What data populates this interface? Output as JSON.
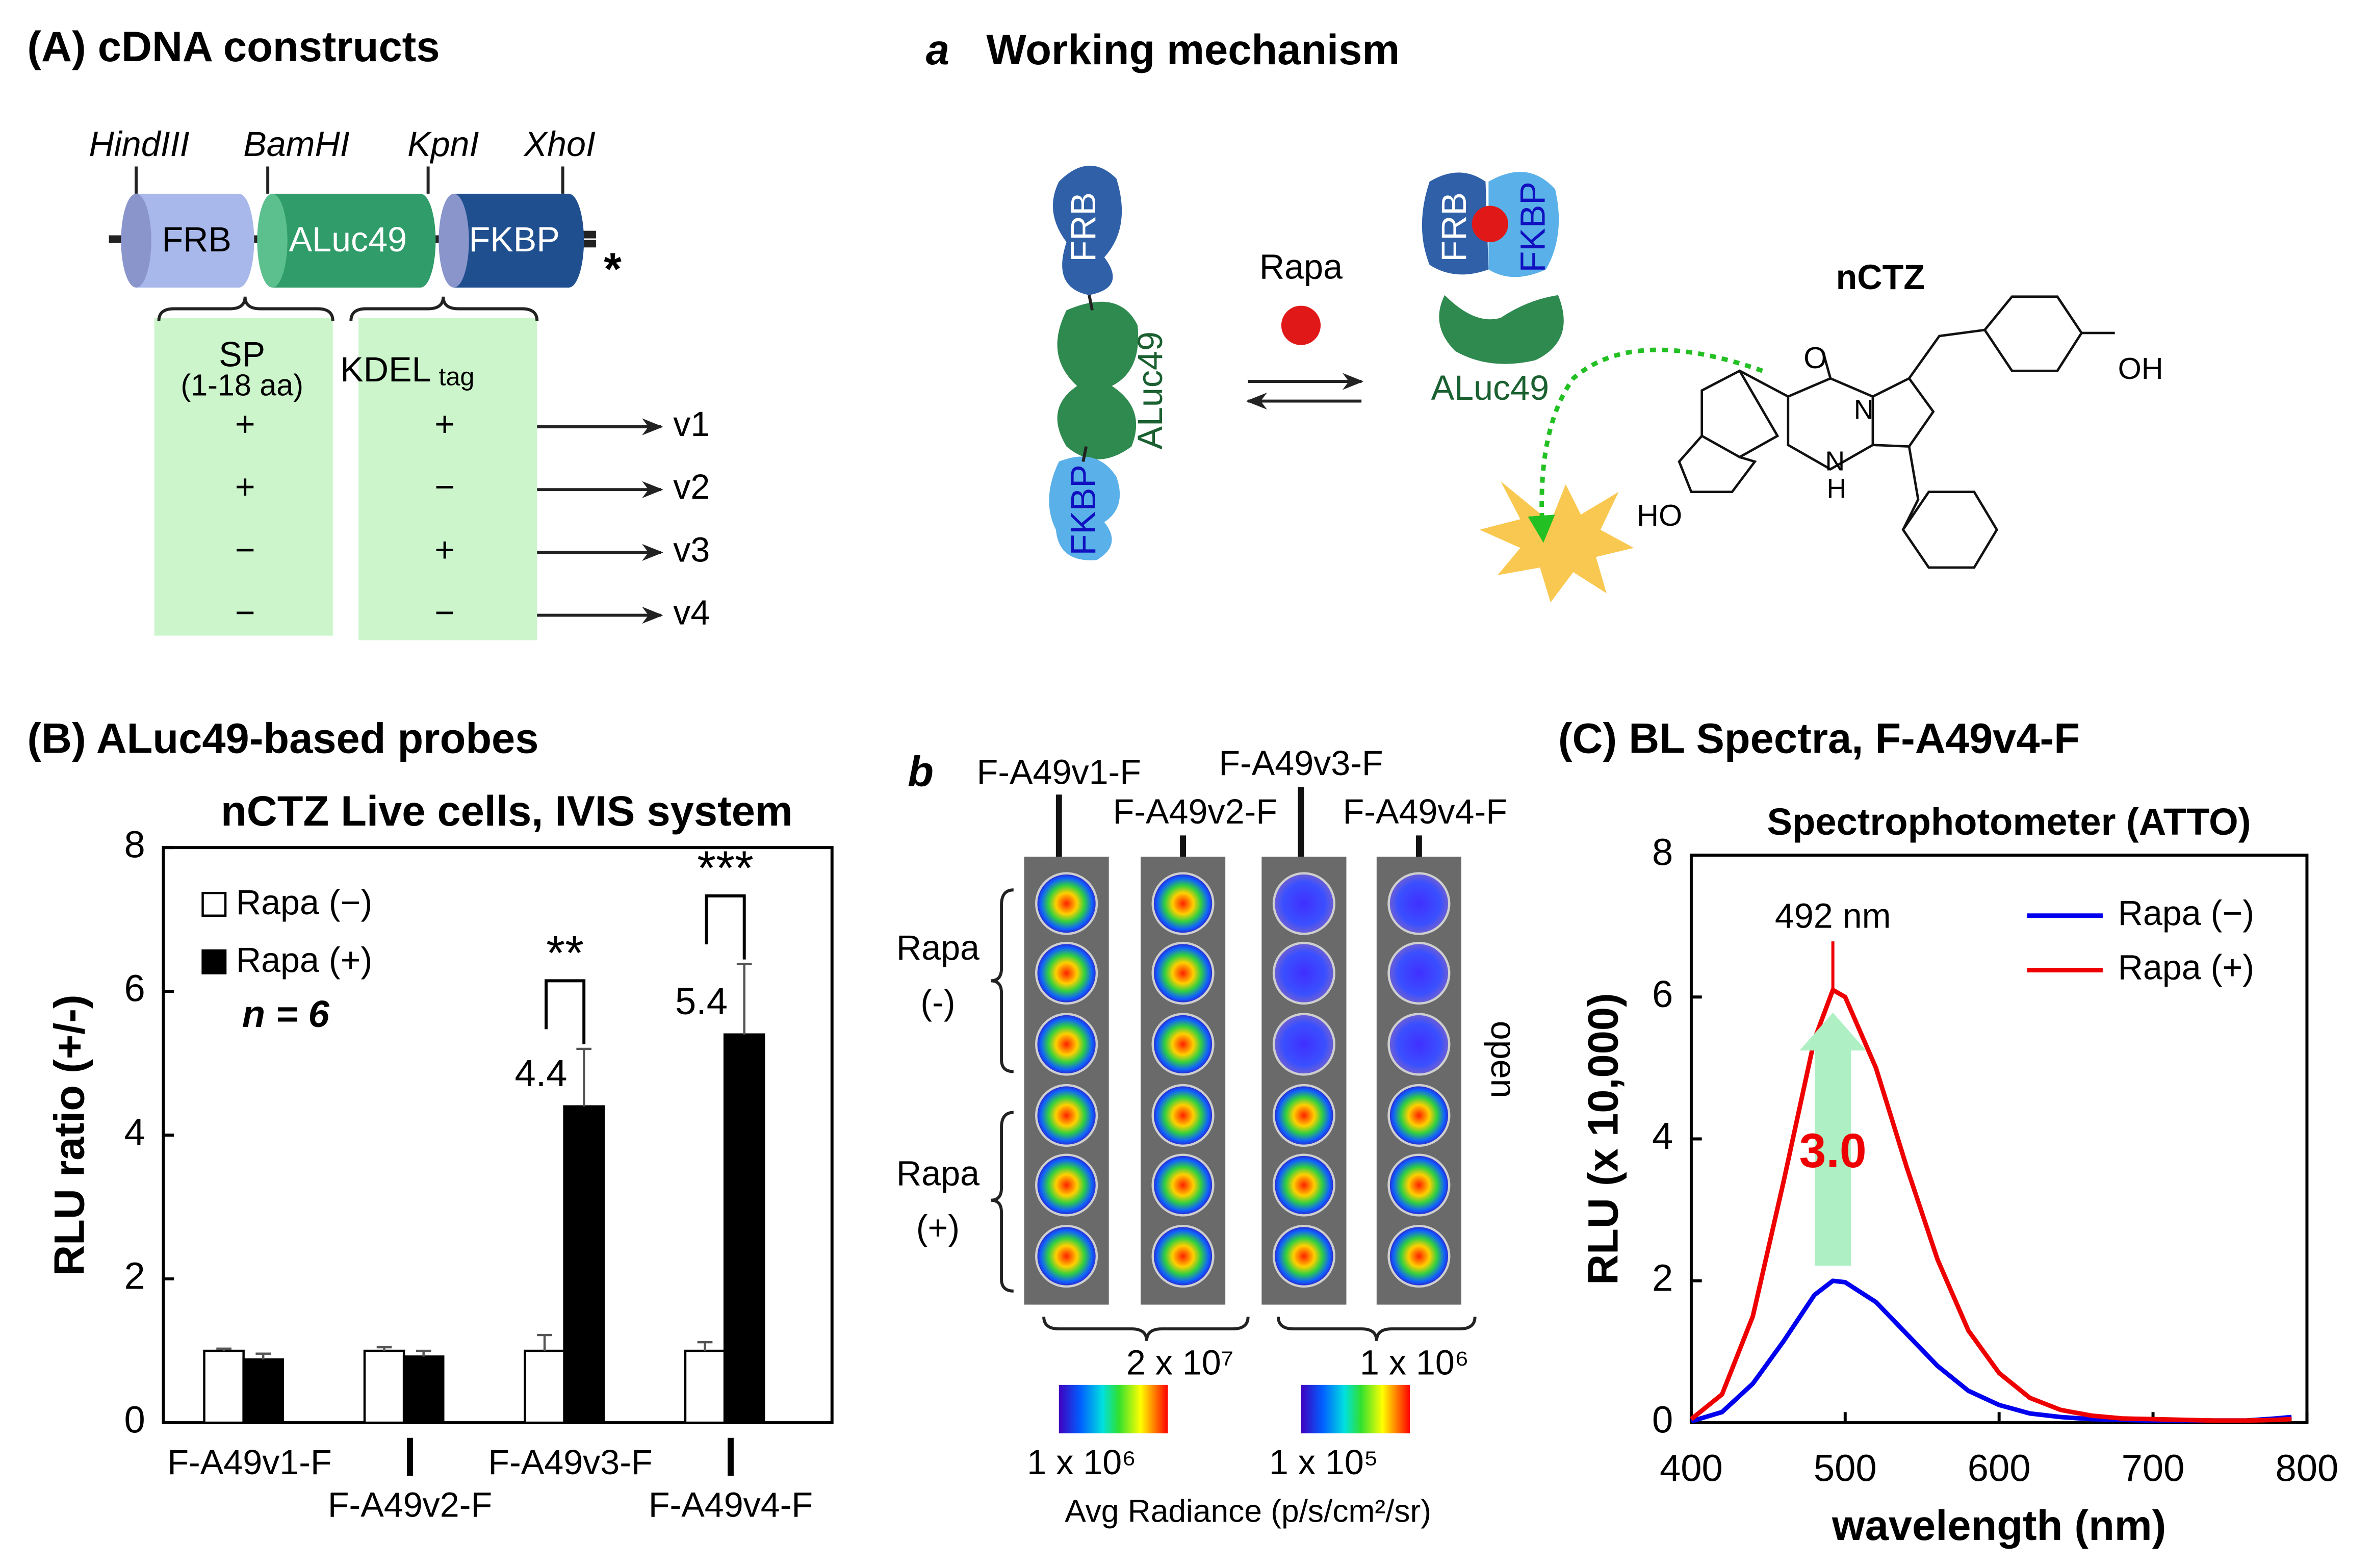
{
  "panel_a": {
    "label": "(A) cDNA constructs",
    "sites": [
      "HindIII",
      "BamHI",
      "KpnI",
      "XhoI"
    ],
    "domains": [
      "FRB",
      "ALuc49",
      "FKBP"
    ],
    "stop": "*",
    "sp": [
      "SP",
      "(1-18 aa)"
    ],
    "kdel": [
      "KDEL",
      "tag"
    ],
    "rows": [
      [
        "+",
        "+",
        "v1"
      ],
      [
        "+",
        "−",
        "v2"
      ],
      [
        "−",
        "+",
        "v3"
      ],
      [
        "−",
        "−",
        "v4"
      ]
    ]
  },
  "mechanism": {
    "letter": "a",
    "title": "Working mechanism",
    "free": [
      "FRB",
      "ALuc49",
      "FKBP"
    ],
    "ligand": "Rapa",
    "complex": [
      "FRB",
      "FKBP",
      "ALuc49"
    ],
    "substrate": "nCTZ",
    "atoms": [
      "O",
      "N",
      "N",
      "H",
      "OH",
      "HO"
    ]
  },
  "imaging": {
    "letter": "b",
    "probes": [
      "F-A49v1-F",
      "F-A49v2-F",
      "F-A49v3-F",
      "F-A49v4-F"
    ],
    "groups": [
      [
        "Rapa",
        "(-)"
      ],
      [
        "Rapa",
        "(+)"
      ]
    ],
    "side": "open",
    "scale_max": [
      "2 x 10⁷",
      "1 x 10⁶"
    ],
    "scale_min": [
      "1 x 10⁶",
      "1 x 10⁵"
    ],
    "scale_title": "Avg Radiance (p/s/cm²/sr)"
  },
  "chart_data": [
    {
      "type": "bar",
      "panel_label": "(B) ALuc49-based probes",
      "title": "nCTZ Live cells, IVIS system",
      "ylabel": "RLU ratio (+/-)",
      "categories": [
        "F-A49v1-F",
        "F-A49v2-F",
        "F-A49v3-F",
        "F-A49v4-F"
      ],
      "series": [
        {
          "name": "Rapa (−)",
          "color": "#ffffff",
          "values": [
            1,
            1,
            1,
            1
          ],
          "errors": [
            0.03,
            0.05,
            0.22,
            0.12
          ]
        },
        {
          "name": "Rapa (+)",
          "color": "#000000",
          "values": [
            0.88,
            0.92,
            4.4,
            5.4
          ],
          "errors": [
            0.08,
            0.08,
            0.8,
            0.98
          ]
        }
      ],
      "significance": [
        null,
        null,
        "**",
        "***"
      ],
      "sample_size": "n = 6",
      "ylim": [
        0,
        8
      ],
      "yticks": [
        0,
        2,
        4,
        6,
        8
      ],
      "legend": "upper left"
    },
    {
      "type": "line",
      "panel_label": "(C) BL Spectra, F-A49v4-F",
      "title": "Spectrophotometer (ATTO)",
      "xlabel": "wavelength (nm)",
      "ylabel": "RLU  (x 10,000)",
      "x": [
        400,
        420,
        440,
        460,
        480,
        492,
        500,
        520,
        540,
        560,
        580,
        600,
        620,
        640,
        660,
        680,
        700,
        720,
        740,
        760,
        780,
        790
      ],
      "series": [
        {
          "name": "Rapa (−)",
          "color": "#0000ee",
          "values": [
            0.02,
            0.15,
            0.55,
            1.15,
            1.8,
            2.0,
            1.98,
            1.7,
            1.25,
            0.8,
            0.45,
            0.25,
            0.13,
            0.08,
            0.05,
            0.04,
            0.03,
            0.03,
            0.03,
            0.03,
            0.06,
            0.08
          ]
        },
        {
          "name": "Rapa (+)",
          "color": "#ee0000",
          "values": [
            0.05,
            0.4,
            1.5,
            3.4,
            5.4,
            6.1,
            6.0,
            5.0,
            3.6,
            2.3,
            1.3,
            0.7,
            0.35,
            0.18,
            0.1,
            0.06,
            0.05,
            0.04,
            0.03,
            0.03,
            0.04,
            0.05
          ]
        }
      ],
      "peak_label": "492 nm",
      "fold_label": "3.0",
      "xlim": [
        400,
        800
      ],
      "xticks": [
        400,
        500,
        600,
        700,
        800
      ],
      "ylim": [
        0,
        8
      ],
      "yticks": [
        0,
        2,
        4,
        6,
        8
      ],
      "legend": "upper right"
    }
  ]
}
